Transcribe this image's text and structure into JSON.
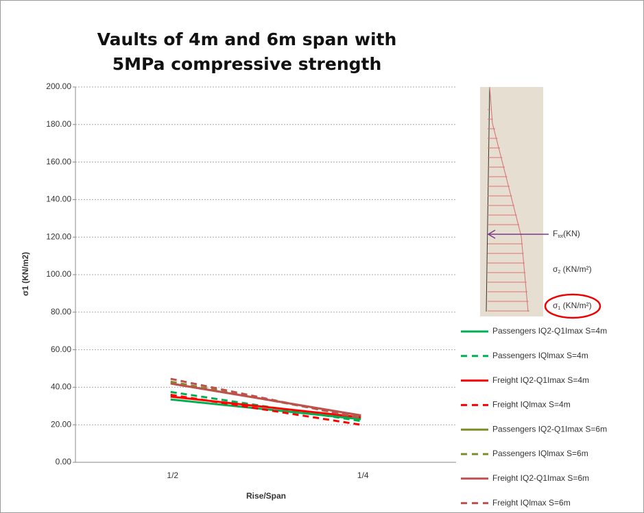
{
  "chart_data": {
    "type": "line",
    "title": "Vaults of 4m and 6m span with 5MPa compressive strength",
    "x_label": "Rise/Span",
    "y_label": "σ1 (KN/m2)",
    "categories": [
      "1/2",
      "1/4"
    ],
    "ylim": [
      0,
      200
    ],
    "yticks": [
      {
        "value": 0,
        "label": "0.00"
      },
      {
        "value": 20,
        "label": "20.00"
      },
      {
        "value": 40,
        "label": "40.00"
      },
      {
        "value": 60,
        "label": "60.00"
      },
      {
        "value": 80,
        "label": "80.00"
      },
      {
        "value": 100,
        "label": "100.00"
      },
      {
        "value": 120,
        "label": "120.00"
      },
      {
        "value": 140,
        "label": "140.00"
      },
      {
        "value": 160,
        "label": "160.00"
      },
      {
        "value": 180,
        "label": "180.00"
      },
      {
        "value": 200,
        "label": "200.00"
      }
    ],
    "grid": true,
    "legend": "right",
    "series": [
      {
        "name": "Passengers IQ2-Q1Imax S=4m",
        "color": "#00b050",
        "dash": false,
        "values": [
          33.5,
          23
        ]
      },
      {
        "name": "Passengers IQlmax S=4m",
        "color": "#00b050",
        "dash": true,
        "values": [
          37.5,
          22
        ]
      },
      {
        "name": "Freight IQ2-Q1Imax S=4m",
        "color": "#ff0000",
        "dash": false,
        "values": [
          35,
          24
        ]
      },
      {
        "name": "Freight IQlmax S=4m",
        "color": "#ff0000",
        "dash": true,
        "values": [
          36,
          20
        ]
      },
      {
        "name": "Passengers IQ2-Q1Imax S=6m",
        "color": "#7f8b2a",
        "dash": false,
        "values": [
          42,
          25
        ]
      },
      {
        "name": "Passengers IQlmax S=6m",
        "color": "#7f8b2a",
        "dash": true,
        "values": [
          43,
          24
        ]
      },
      {
        "name": "Freight IQ2-Q1Imax S=6m",
        "color": "#c0504d",
        "dash": false,
        "values": [
          42,
          25
        ]
      },
      {
        "name": "Freight IQlmax S=6m",
        "color": "#c0504d",
        "dash": true,
        "values": [
          44.5,
          23.5
        ]
      }
    ]
  },
  "inset": {
    "labels": [
      {
        "main": "F",
        "sub": "tot",
        "rest": "(KN)"
      },
      {
        "main": "σ",
        "sub": "2",
        "rest": " (KN/m²)"
      },
      {
        "main": "σ",
        "sub": "1",
        "rest": " (KN/m²)"
      }
    ]
  }
}
